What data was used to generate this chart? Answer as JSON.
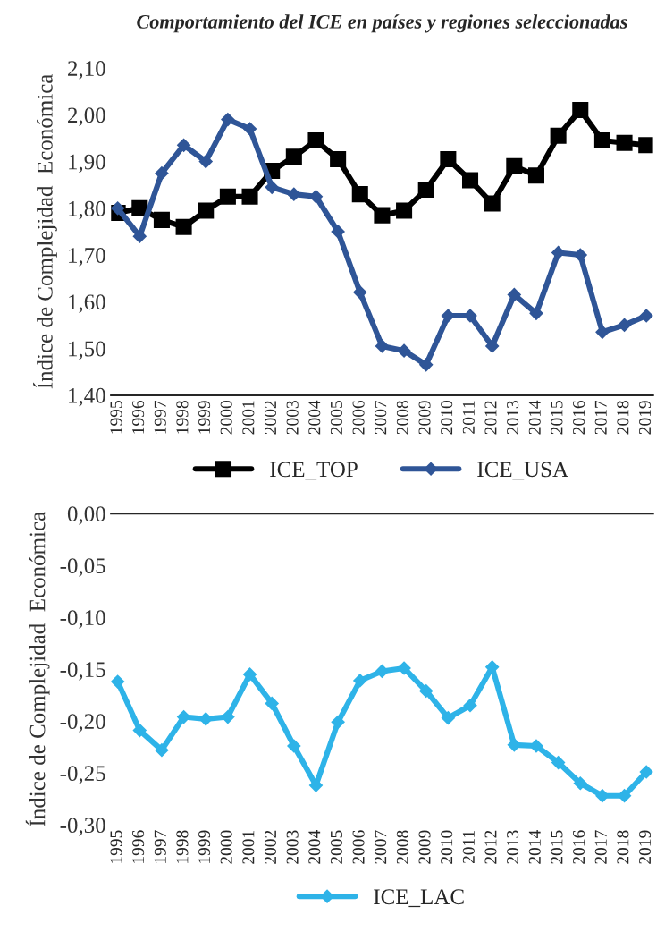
{
  "chart_data": [
    {
      "type": "line",
      "title": "Comportamiento del ICE en países y regiones seleccionadas",
      "ylabel": "Índice de Complejidad  Económica",
      "categories": [
        "1995",
        "1996",
        "1997",
        "1998",
        "1999",
        "2000",
        "2001",
        "2002",
        "2003",
        "2004",
        "2005",
        "2006",
        "2007",
        "2008",
        "2009",
        "2010",
        "2011",
        "2012",
        "2013",
        "2014",
        "2015",
        "2016",
        "2017",
        "2018",
        "2019"
      ],
      "series": [
        {
          "name": "ICE_TOP",
          "color": "#000000",
          "marker": "square",
          "values": [
            1.79,
            1.8,
            1.775,
            1.76,
            1.795,
            1.825,
            1.825,
            1.88,
            1.91,
            1.945,
            1.905,
            1.83,
            1.785,
            1.795,
            1.84,
            1.905,
            1.86,
            1.81,
            1.89,
            1.87,
            1.955,
            2.01,
            1.945,
            1.94,
            1.935
          ]
        },
        {
          "name": "ICE_USA",
          "color": "#2f5597",
          "marker": "diamond",
          "values": [
            1.8,
            1.74,
            1.875,
            1.935,
            1.9,
            1.99,
            1.97,
            1.845,
            1.83,
            1.825,
            1.75,
            1.62,
            1.505,
            1.495,
            1.465,
            1.57,
            1.57,
            1.505,
            1.615,
            1.575,
            1.705,
            1.7,
            1.535,
            1.55,
            1.57
          ]
        }
      ],
      "ylim": [
        1.4,
        2.1
      ],
      "yticks": [
        {
          "value": 1.4,
          "label": "1,40"
        },
        {
          "value": 1.5,
          "label": "1,50"
        },
        {
          "value": 1.6,
          "label": "1,60"
        },
        {
          "value": 1.7,
          "label": "1,70"
        },
        {
          "value": 1.8,
          "label": "1,80"
        },
        {
          "value": 1.9,
          "label": "1,90"
        },
        {
          "value": 2.0,
          "label": "2,00"
        },
        {
          "value": 2.1,
          "label": "2,10"
        }
      ],
      "legend": "bottom",
      "grid": false,
      "line_style": "solid"
    },
    {
      "type": "line",
      "ylabel": "Índice de Complejidad  Económica",
      "categories": [
        "1995",
        "1996",
        "1997",
        "1998",
        "1999",
        "2000",
        "2001",
        "2002",
        "2003",
        "2004",
        "2005",
        "2006",
        "2007",
        "2008",
        "2009",
        "2010",
        "2011",
        "2012",
        "2013",
        "2014",
        "2015",
        "2016",
        "2017",
        "2018",
        "2019"
      ],
      "series": [
        {
          "name": "ICE_LAC",
          "color": "#2eb3e8",
          "marker": "diamond",
          "values": [
            -0.162,
            -0.209,
            -0.228,
            -0.196,
            -0.198,
            -0.196,
            -0.155,
            -0.183,
            -0.224,
            -0.262,
            -0.201,
            -0.161,
            -0.152,
            -0.149,
            -0.171,
            -0.197,
            -0.185,
            -0.148,
            -0.223,
            -0.224,
            -0.24,
            -0.26,
            -0.272,
            -0.272,
            -0.249
          ]
        }
      ],
      "ylim": [
        -0.3,
        0.0
      ],
      "yticks": [
        {
          "value": -0.3,
          "label": "-0,30"
        },
        {
          "value": -0.25,
          "label": "-0,25"
        },
        {
          "value": -0.2,
          "label": "-0,20"
        },
        {
          "value": -0.15,
          "label": "-0,15"
        },
        {
          "value": -0.1,
          "label": "-0,10"
        },
        {
          "value": -0.05,
          "label": "-0,05"
        },
        {
          "value": 0.0,
          "label": "0,00"
        }
      ],
      "legend": "bottom",
      "grid": false,
      "line_style": "solid"
    }
  ]
}
